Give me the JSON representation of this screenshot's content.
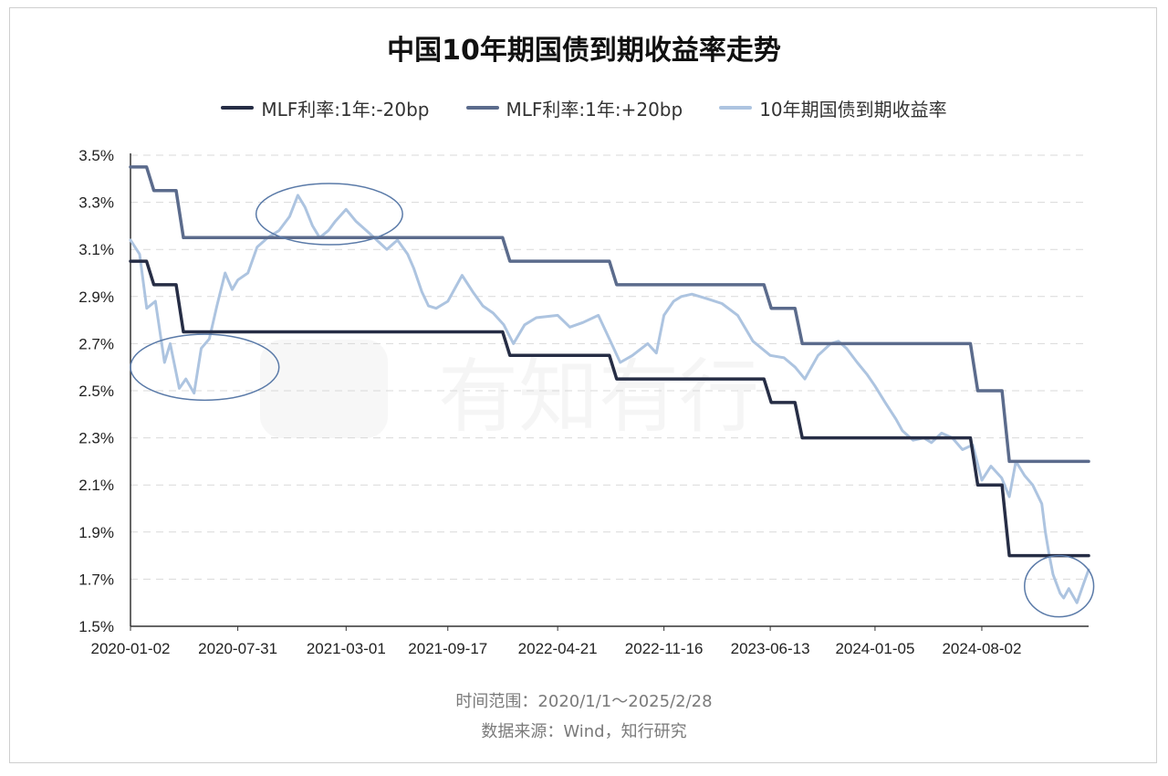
{
  "chart_data": {
    "type": "line",
    "title": "中国10年期国债到期收益率走势",
    "x_tick_labels": [
      "2020-01-02",
      "2020-07-31",
      "2021-03-01",
      "2021-09-17",
      "2022-04-21",
      "2022-11-16",
      "2023-06-13",
      "2024-01-05",
      "2024-08-02"
    ],
    "xlim": [
      "2020-01-02",
      "2025-02-28"
    ],
    "y_tick_labels": [
      "1.5%",
      "1.7%",
      "1.9%",
      "2.1%",
      "2.3%",
      "2.5%",
      "2.7%",
      "2.9%",
      "3.1%",
      "3.3%",
      "3.5%"
    ],
    "ylim": [
      1.5,
      3.5
    ],
    "y_unit": "%",
    "grid": "horizontal-dashed",
    "legend_position": "top",
    "series": [
      {
        "name": "MLF利率:1年:-20bp",
        "color": "#262d45",
        "kind": "step",
        "points": [
          [
            "2020-01-02",
            3.05
          ],
          [
            "2020-02-17",
            2.95
          ],
          [
            "2020-04-15",
            2.75
          ],
          [
            "2022-01-17",
            2.65
          ],
          [
            "2022-08-15",
            2.55
          ],
          [
            "2023-06-15",
            2.45
          ],
          [
            "2023-08-15",
            2.3
          ],
          [
            "2024-07-25",
            2.1
          ],
          [
            "2024-09-25",
            1.8
          ],
          [
            "2025-02-28",
            1.8
          ]
        ]
      },
      {
        "name": "MLF利率:1年:+20bp",
        "color": "#5b6b8c",
        "kind": "step",
        "points": [
          [
            "2020-01-02",
            3.45
          ],
          [
            "2020-02-17",
            3.35
          ],
          [
            "2020-04-15",
            3.15
          ],
          [
            "2022-01-17",
            3.05
          ],
          [
            "2022-08-15",
            2.95
          ],
          [
            "2023-06-15",
            2.85
          ],
          [
            "2023-08-15",
            2.7
          ],
          [
            "2024-07-25",
            2.5
          ],
          [
            "2024-09-25",
            2.2
          ],
          [
            "2025-02-28",
            2.2
          ]
        ]
      },
      {
        "name": "10年期国债到期收益率",
        "color": "#adc4e0",
        "kind": "line",
        "points": [
          [
            "2020-01-02",
            3.14
          ],
          [
            "2020-01-20",
            3.08
          ],
          [
            "2020-02-03",
            2.85
          ],
          [
            "2020-02-20",
            2.88
          ],
          [
            "2020-03-09",
            2.62
          ],
          [
            "2020-03-20",
            2.7
          ],
          [
            "2020-04-07",
            2.51
          ],
          [
            "2020-04-20",
            2.55
          ],
          [
            "2020-05-06",
            2.49
          ],
          [
            "2020-05-20",
            2.68
          ],
          [
            "2020-06-05",
            2.72
          ],
          [
            "2020-06-20",
            2.86
          ],
          [
            "2020-07-06",
            3.0
          ],
          [
            "2020-07-20",
            2.93
          ],
          [
            "2020-07-31",
            2.97
          ],
          [
            "2020-08-20",
            3.0
          ],
          [
            "2020-09-07",
            3.11
          ],
          [
            "2020-09-28",
            3.15
          ],
          [
            "2020-10-20",
            3.18
          ],
          [
            "2020-11-10",
            3.24
          ],
          [
            "2020-11-26",
            3.33
          ],
          [
            "2020-12-10",
            3.28
          ],
          [
            "2020-12-25",
            3.2
          ],
          [
            "2021-01-08",
            3.15
          ],
          [
            "2021-01-25",
            3.18
          ],
          [
            "2021-02-08",
            3.22
          ],
          [
            "2021-03-01",
            3.27
          ],
          [
            "2021-03-20",
            3.22
          ],
          [
            "2021-04-15",
            3.17
          ],
          [
            "2021-05-10",
            3.12
          ],
          [
            "2021-05-20",
            3.1
          ],
          [
            "2021-06-10",
            3.14
          ],
          [
            "2021-06-30",
            3.08
          ],
          [
            "2021-07-12",
            3.02
          ],
          [
            "2021-07-28",
            2.92
          ],
          [
            "2021-08-10",
            2.86
          ],
          [
            "2021-08-25",
            2.85
          ],
          [
            "2021-09-17",
            2.88
          ],
          [
            "2021-10-15",
            2.99
          ],
          [
            "2021-11-05",
            2.92
          ],
          [
            "2021-11-25",
            2.86
          ],
          [
            "2021-12-15",
            2.83
          ],
          [
            "2022-01-05",
            2.78
          ],
          [
            "2022-01-24",
            2.7
          ],
          [
            "2022-02-15",
            2.78
          ],
          [
            "2022-03-10",
            2.81
          ],
          [
            "2022-04-21",
            2.82
          ],
          [
            "2022-05-15",
            2.77
          ],
          [
            "2022-06-10",
            2.79
          ],
          [
            "2022-07-10",
            2.82
          ],
          [
            "2022-08-05",
            2.7
          ],
          [
            "2022-08-22",
            2.62
          ],
          [
            "2022-09-15",
            2.65
          ],
          [
            "2022-10-15",
            2.7
          ],
          [
            "2022-11-01",
            2.66
          ],
          [
            "2022-11-16",
            2.82
          ],
          [
            "2022-12-05",
            2.88
          ],
          [
            "2022-12-20",
            2.9
          ],
          [
            "2023-01-10",
            2.91
          ],
          [
            "2023-02-10",
            2.89
          ],
          [
            "2023-03-10",
            2.87
          ],
          [
            "2023-04-10",
            2.82
          ],
          [
            "2023-05-10",
            2.71
          ],
          [
            "2023-06-13",
            2.65
          ],
          [
            "2023-07-10",
            2.64
          ],
          [
            "2023-08-01",
            2.6
          ],
          [
            "2023-08-20",
            2.55
          ],
          [
            "2023-09-15",
            2.65
          ],
          [
            "2023-10-10",
            2.7
          ],
          [
            "2023-10-25",
            2.71
          ],
          [
            "2023-11-10",
            2.68
          ],
          [
            "2023-12-01",
            2.62
          ],
          [
            "2023-12-20",
            2.57
          ],
          [
            "2024-01-05",
            2.52
          ],
          [
            "2024-01-25",
            2.45
          ],
          [
            "2024-02-15",
            2.38
          ],
          [
            "2024-02-28",
            2.33
          ],
          [
            "2024-03-20",
            2.29
          ],
          [
            "2024-04-10",
            2.3
          ],
          [
            "2024-04-25",
            2.28
          ],
          [
            "2024-05-15",
            2.32
          ],
          [
            "2024-06-05",
            2.3
          ],
          [
            "2024-06-25",
            2.25
          ],
          [
            "2024-07-15",
            2.27
          ],
          [
            "2024-08-02",
            2.12
          ],
          [
            "2024-08-20",
            2.18
          ],
          [
            "2024-09-10",
            2.13
          ],
          [
            "2024-09-25",
            2.05
          ],
          [
            "2024-10-08",
            2.2
          ],
          [
            "2024-10-25",
            2.14
          ],
          [
            "2024-11-10",
            2.1
          ],
          [
            "2024-11-28",
            2.02
          ],
          [
            "2024-12-05",
            1.9
          ],
          [
            "2024-12-12",
            1.81
          ],
          [
            "2024-12-20",
            1.72
          ],
          [
            "2025-01-03",
            1.64
          ],
          [
            "2025-01-10",
            1.62
          ],
          [
            "2025-01-20",
            1.66
          ],
          [
            "2025-02-05",
            1.6
          ],
          [
            "2025-02-18",
            1.68
          ],
          [
            "2025-02-28",
            1.74
          ]
        ]
      }
    ],
    "annotations": [
      {
        "type": "ellipse",
        "x_range": [
          "2020-01-02",
          "2020-10-20"
        ],
        "y_range": [
          2.46,
          2.74
        ]
      },
      {
        "type": "ellipse",
        "x_range": [
          "2020-09-05",
          "2021-06-20"
        ],
        "y_range": [
          3.12,
          3.38
        ]
      },
      {
        "type": "ellipse",
        "x_range": [
          "2024-10-25",
          "2025-03-10"
        ],
        "y_range": [
          1.54,
          1.8
        ]
      }
    ],
    "watermark": "有知有行"
  },
  "footer": {
    "time_range": "时间范围：2020/1/1～2025/2/28",
    "source": "数据来源：Wind，知行研究"
  }
}
